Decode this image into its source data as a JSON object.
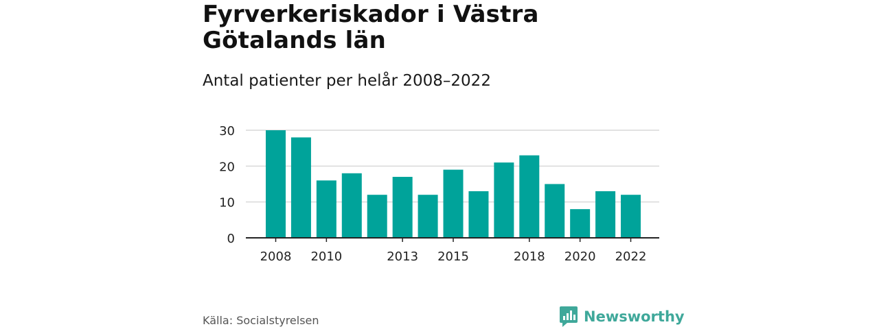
{
  "header": {
    "title": "Fyrverkeriskador i Västra Götalands län",
    "subtitle": "Antal patienter per helår 2008–2022"
  },
  "footer": {
    "source": "Källa: Socialstyrelsen",
    "brand": "Newsworthy"
  },
  "colors": {
    "bar": "#00a39a",
    "grid": "#d9d9d9",
    "axis": "#222222",
    "brand": "#3fa89a"
  },
  "chart_data": {
    "type": "bar",
    "categories": [
      "2008",
      "2009",
      "2010",
      "2011",
      "2012",
      "2013",
      "2014",
      "2015",
      "2016",
      "2017",
      "2018",
      "2019",
      "2020",
      "2021",
      "2022"
    ],
    "values": [
      30,
      28,
      16,
      18,
      12,
      17,
      12,
      19,
      13,
      21,
      23,
      15,
      8,
      13,
      12
    ],
    "x_tick_labels": [
      "2008",
      "2010",
      "2013",
      "2015",
      "2018",
      "2020",
      "2022"
    ],
    "y_ticks": [
      0,
      10,
      20,
      30
    ],
    "ylim": [
      0,
      30
    ],
    "grid": true,
    "title": "Fyrverkeriskador i Västra Götalands län",
    "subtitle": "Antal patienter per helår 2008–2022",
    "xlabel": "",
    "ylabel": ""
  }
}
